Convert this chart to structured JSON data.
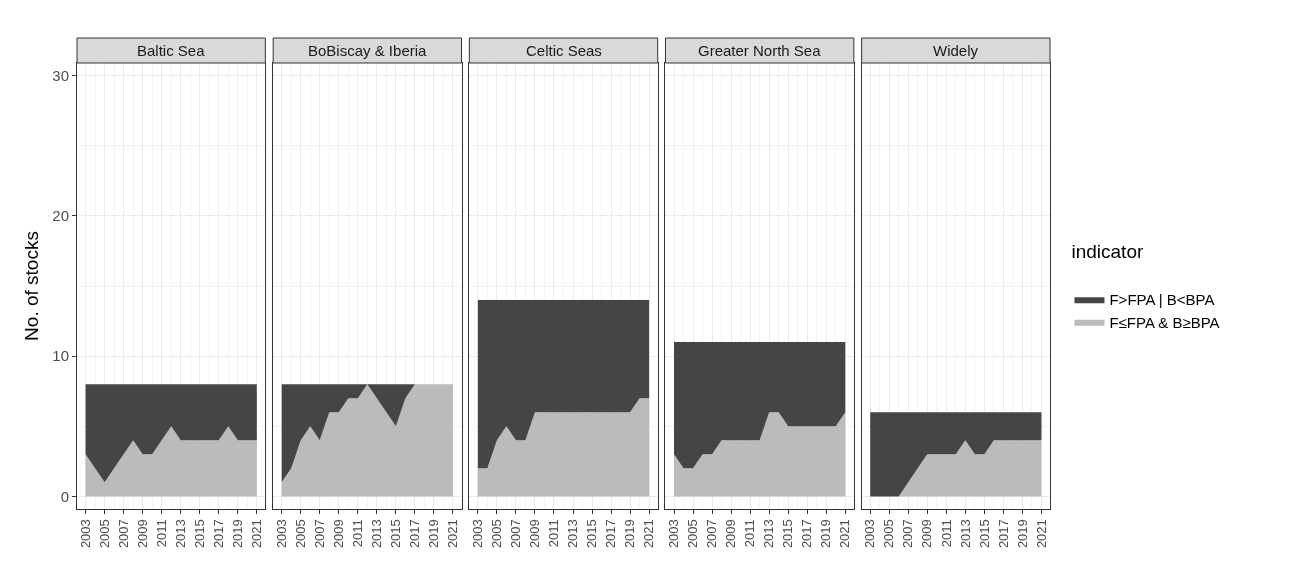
{
  "chart_data": [
    {
      "type": "area",
      "title": "Baltic Sea",
      "ylabel": "No. of stocks",
      "stacked": true,
      "legend": "right",
      "legend_title": "indicator",
      "grid": true,
      "x": [
        2003,
        2004,
        2005,
        2006,
        2007,
        2008,
        2009,
        2010,
        2011,
        2012,
        2013,
        2014,
        2015,
        2016,
        2017,
        2018,
        2019,
        2020,
        2021
      ],
      "xlim": [
        2002.1,
        2021.9
      ],
      "xticks": [
        2003,
        2005,
        2007,
        2009,
        2011,
        2013,
        2015,
        2017,
        2019,
        2021
      ],
      "ylim": [
        -0.9,
        30.9
      ],
      "yticks": [
        0,
        10,
        20,
        30
      ],
      "series": [
        {
          "name": "F≤FPA & B≥BPA",
          "color": "#bbbbbb",
          "values": [
            3,
            2,
            1,
            2,
            3,
            4,
            3,
            3,
            4,
            5,
            4,
            4,
            4,
            4,
            4,
            5,
            4,
            4,
            4
          ]
        },
        {
          "name": "F>FPA | B<BPA",
          "color": "#454545",
          "values": [
            5,
            6,
            7,
            6,
            5,
            4,
            5,
            5,
            4,
            3,
            4,
            4,
            4,
            4,
            4,
            3,
            4,
            4,
            4
          ]
        }
      ]
    },
    {
      "type": "area",
      "title": "BoBiscay & Iberia",
      "stacked": true,
      "grid": true,
      "tick_labels": "x",
      "x": [
        2003,
        2004,
        2005,
        2006,
        2007,
        2008,
        2009,
        2010,
        2011,
        2012,
        2013,
        2014,
        2015,
        2016,
        2017,
        2018,
        2019,
        2020,
        2021
      ],
      "xlim": [
        2002.1,
        2021.9
      ],
      "xticks": [
        2003,
        2005,
        2007,
        2009,
        2011,
        2013,
        2015,
        2017,
        2019,
        2021
      ],
      "ylim": [
        -0.9,
        30.9
      ],
      "yticks": [
        0,
        10,
        20,
        30
      ],
      "series": [
        {
          "color": "#bbbbbb",
          "values": [
            1,
            2,
            4,
            5,
            4,
            6,
            6,
            7,
            7,
            8,
            7,
            6,
            5,
            7,
            8,
            8,
            8,
            8,
            8
          ]
        },
        {
          "color": "#454545",
          "values": [
            7,
            6,
            4,
            3,
            4,
            2,
            2,
            1,
            1,
            0,
            1,
            2,
            3,
            1,
            0,
            0,
            0,
            0,
            0
          ]
        }
      ]
    },
    {
      "type": "area",
      "title": "Celtic Seas",
      "stacked": true,
      "grid": true,
      "tick_labels": "x",
      "x": [
        2003,
        2004,
        2005,
        2006,
        2007,
        2008,
        2009,
        2010,
        2011,
        2012,
        2013,
        2014,
        2015,
        2016,
        2017,
        2018,
        2019,
        2020,
        2021
      ],
      "xlim": [
        2002.1,
        2021.9
      ],
      "xticks": [
        2003,
        2005,
        2007,
        2009,
        2011,
        2013,
        2015,
        2017,
        2019,
        2021
      ],
      "ylim": [
        -0.9,
        30.9
      ],
      "yticks": [
        0,
        10,
        20,
        30
      ],
      "series": [
        {
          "color": "#bbbbbb",
          "values": [
            2,
            2,
            4,
            5,
            4,
            4,
            6,
            6,
            6,
            6,
            6,
            6,
            6,
            6,
            6,
            6,
            6,
            7,
            7
          ]
        },
        {
          "color": "#454545",
          "values": [
            12,
            12,
            10,
            9,
            10,
            10,
            8,
            8,
            8,
            8,
            8,
            8,
            8,
            8,
            8,
            8,
            8,
            7,
            7
          ]
        }
      ]
    },
    {
      "type": "area",
      "title": "Greater North Sea",
      "stacked": true,
      "grid": true,
      "tick_labels": "x",
      "x": [
        2003,
        2004,
        2005,
        2006,
        2007,
        2008,
        2009,
        2010,
        2011,
        2012,
        2013,
        2014,
        2015,
        2016,
        2017,
        2018,
        2019,
        2020,
        2021
      ],
      "xlim": [
        2002.1,
        2021.9
      ],
      "xticks": [
        2003,
        2005,
        2007,
        2009,
        2011,
        2013,
        2015,
        2017,
        2019,
        2021
      ],
      "ylim": [
        -0.9,
        30.9
      ],
      "yticks": [
        0,
        10,
        20,
        30
      ],
      "series": [
        {
          "color": "#bbbbbb",
          "values": [
            3,
            2,
            2,
            3,
            3,
            4,
            4,
            4,
            4,
            4,
            6,
            6,
            5,
            5,
            5,
            5,
            5,
            5,
            6
          ]
        },
        {
          "color": "#454545",
          "values": [
            8,
            9,
            9,
            8,
            8,
            7,
            7,
            7,
            7,
            7,
            5,
            5,
            6,
            6,
            6,
            6,
            6,
            6,
            5
          ]
        }
      ]
    },
    {
      "type": "area",
      "title": "Widely",
      "stacked": true,
      "grid": true,
      "tick_labels": "x",
      "x": [
        2003,
        2004,
        2005,
        2006,
        2007,
        2008,
        2009,
        2010,
        2011,
        2012,
        2013,
        2014,
        2015,
        2016,
        2017,
        2018,
        2019,
        2020,
        2021
      ],
      "xlim": [
        2002.1,
        2021.9
      ],
      "xticks": [
        2003,
        2005,
        2007,
        2009,
        2011,
        2013,
        2015,
        2017,
        2019,
        2021
      ],
      "ylim": [
        -0.9,
        30.9
      ],
      "yticks": [
        0,
        10,
        20,
        30
      ],
      "series": [
        {
          "color": "#bbbbbb",
          "values": [
            0,
            0,
            0,
            0,
            1,
            2,
            3,
            3,
            3,
            3,
            4,
            3,
            3,
            4,
            4,
            4,
            4,
            4,
            4
          ]
        },
        {
          "color": "#454545",
          "values": [
            6,
            6,
            6,
            6,
            5,
            4,
            3,
            3,
            3,
            3,
            2,
            3,
            3,
            2,
            2,
            2,
            2,
            2,
            2
          ]
        }
      ]
    }
  ]
}
